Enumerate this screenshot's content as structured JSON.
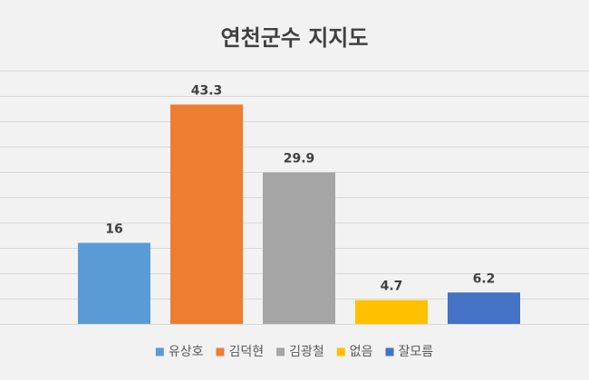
{
  "chart_data": {
    "type": "bar",
    "title": "연천군수 지지도",
    "categories": [
      "유상호",
      "김덕현",
      "김광철",
      "없음",
      "잘모름"
    ],
    "values": [
      16,
      43.3,
      29.9,
      4.7,
      6.2
    ],
    "value_labels": [
      "16",
      "43.3",
      "29.9",
      "4.7",
      "6.2"
    ],
    "colors": [
      "#5b9bd5",
      "#ed7d31",
      "#a5a5a5",
      "#ffc000",
      "#4472c4"
    ],
    "ylim": [
      0,
      50
    ],
    "grid": true,
    "legend_position": "bottom"
  }
}
